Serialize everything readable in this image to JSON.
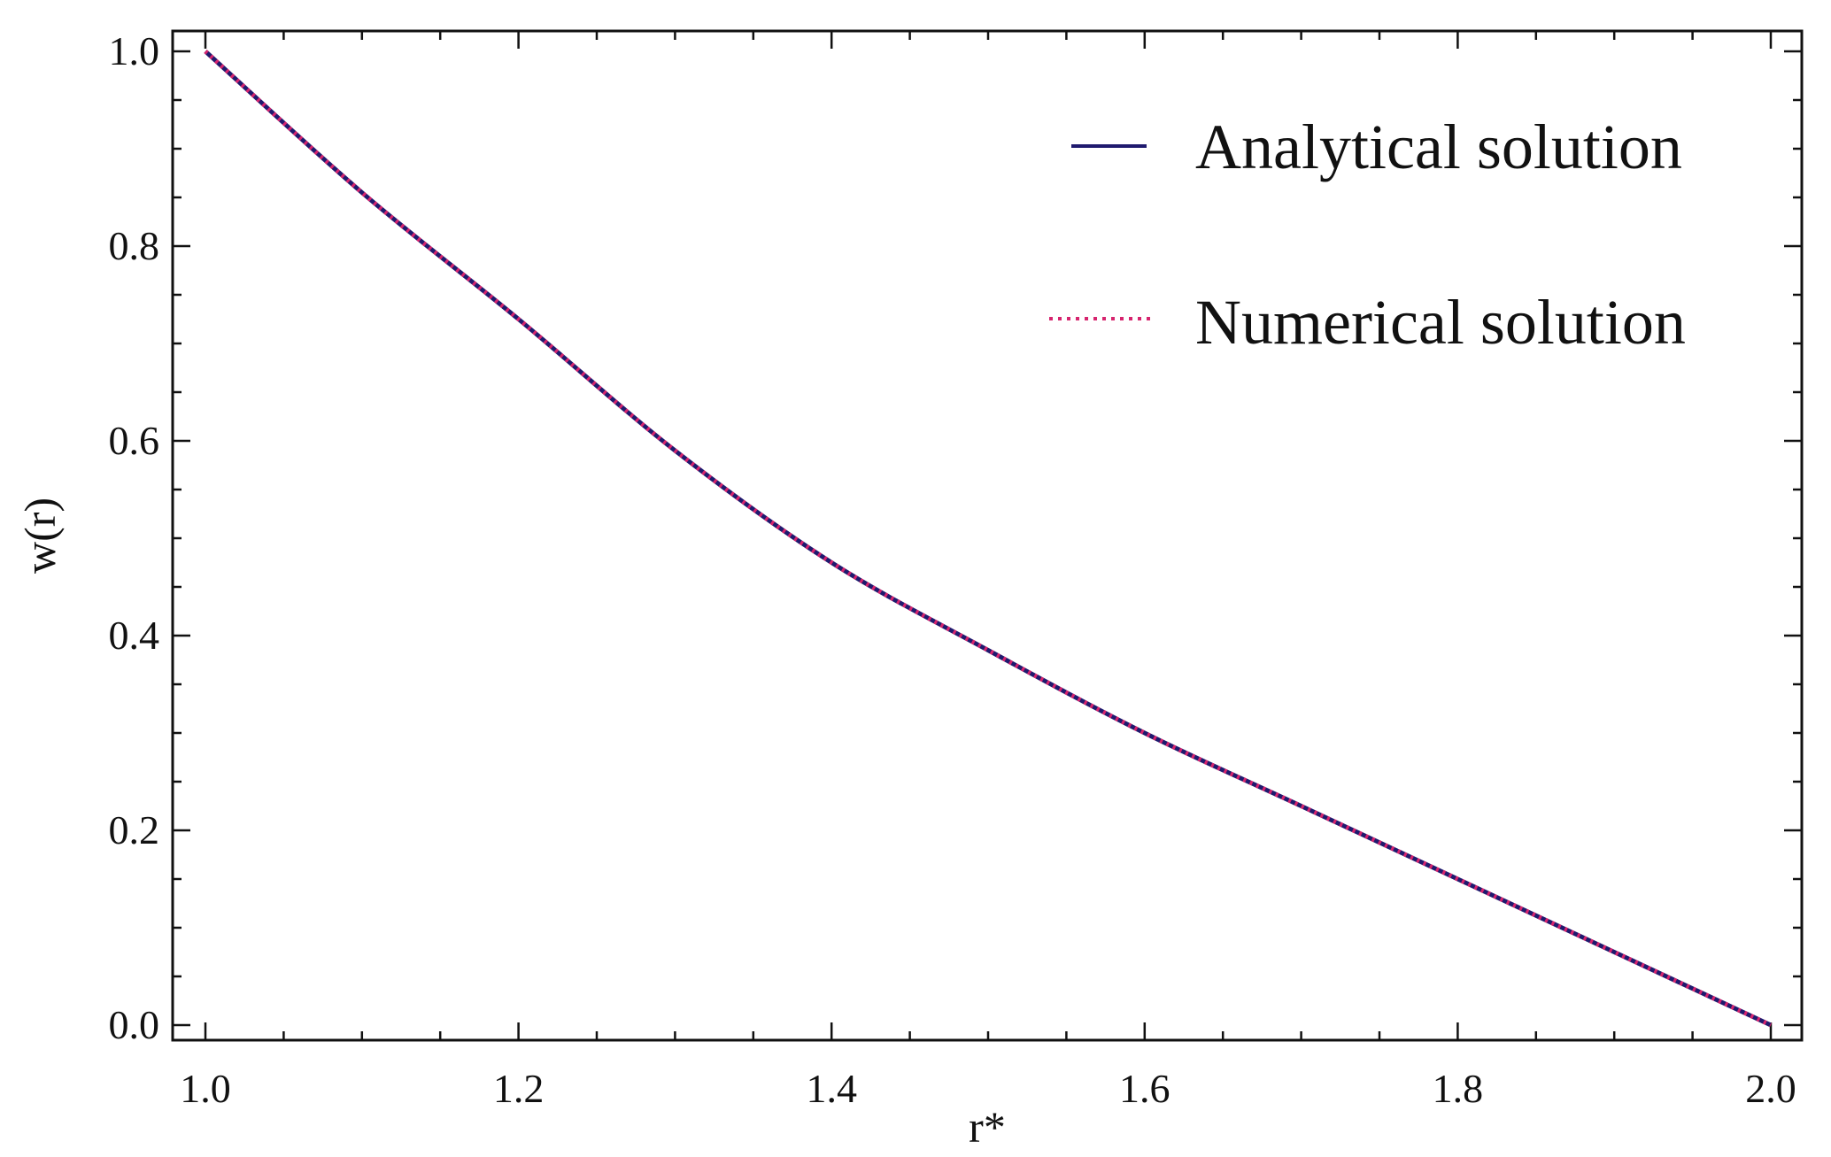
{
  "chart_data": {
    "type": "line",
    "xlabel": "r*",
    "ylabel": "w(r)",
    "xlim": [
      1.0,
      2.0
    ],
    "ylim": [
      0.0,
      1.0
    ],
    "x_ticks": [
      "1.0",
      "1.2",
      "1.4",
      "1.6",
      "1.8",
      "2.0"
    ],
    "y_ticks": [
      "0.0",
      "0.2",
      "0.4",
      "0.6",
      "0.8",
      "1.0"
    ],
    "grid": false,
    "legend_position": "top-right",
    "series": [
      {
        "name": "Analytical solution",
        "style": "solid",
        "color": "#1f1a6e",
        "x": [
          1.0,
          1.1,
          1.2,
          1.3,
          1.4,
          1.5,
          1.6,
          1.7,
          1.8,
          1.9,
          2.0
        ],
        "y": [
          1.0,
          0.855,
          0.725,
          0.59,
          0.475,
          0.385,
          0.3,
          0.225,
          0.15,
          0.075,
          0.0
        ]
      },
      {
        "name": "Numerical solution",
        "style": "dotted",
        "color": "#d6246e",
        "x": [
          1.0,
          1.1,
          1.2,
          1.3,
          1.4,
          1.5,
          1.6,
          1.7,
          1.8,
          1.9,
          2.0
        ],
        "y": [
          1.0,
          0.855,
          0.725,
          0.59,
          0.475,
          0.385,
          0.3,
          0.225,
          0.15,
          0.075,
          0.0
        ]
      }
    ]
  }
}
